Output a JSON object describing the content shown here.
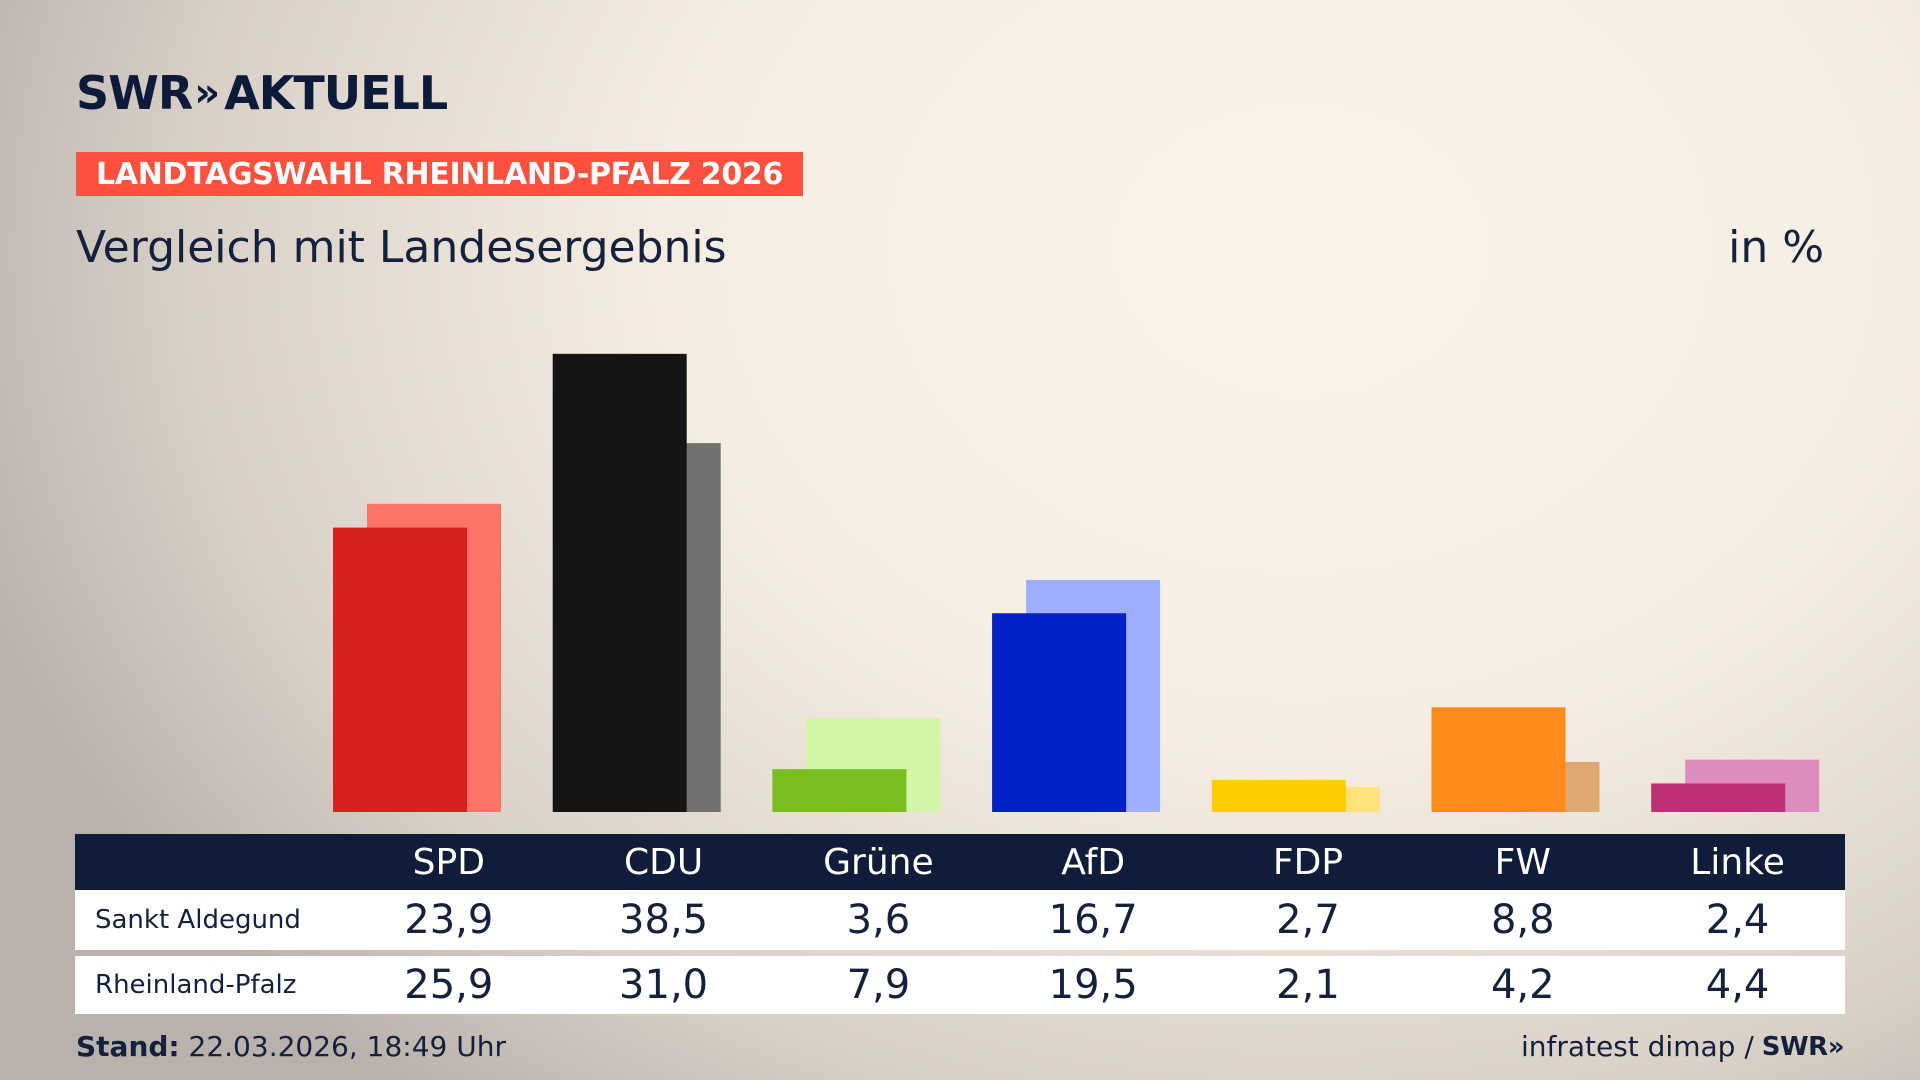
{
  "header": {
    "logo_text": "SWR",
    "logo_chevrons": "»",
    "logo_suffix": "AKTUELL",
    "badge": "LANDTAGSWAHL RHEINLAND-PFALZ 2026",
    "subtitle": "Vergleich mit Landesergebnis",
    "unit": "in %"
  },
  "colors": {
    "badge": "#ff4f3d",
    "navy": "#0f1d3b"
  },
  "chart_data": {
    "type": "bar",
    "categories": [
      "SPD",
      "CDU",
      "Grüne",
      "AfD",
      "FDP",
      "FW",
      "Linke"
    ],
    "series": [
      {
        "name": "Sankt Aldegund",
        "values": [
          23.9,
          38.5,
          3.6,
          16.7,
          2.7,
          8.8,
          2.4
        ],
        "colors": [
          "#d6211e",
          "#141414",
          "#78be20",
          "#0020c8",
          "#ffcc00",
          "#ff8c1a",
          "#be3075"
        ]
      },
      {
        "name": "Rheinland-Pfalz",
        "values": [
          25.9,
          31.0,
          7.9,
          19.5,
          2.1,
          4.2,
          4.4
        ],
        "colors": [
          "#ff7468",
          "#737070",
          "#d4f5a8",
          "#9eaefe",
          "#ffe37a",
          "#dea870",
          "#de8cbc"
        ]
      }
    ],
    "ylim": [
      0,
      40
    ]
  },
  "table": {
    "rows": [
      {
        "label": "Sankt Aldegund",
        "values": [
          "23,9",
          "38,5",
          "3,6",
          "16,7",
          "2,7",
          "8,8",
          "2,4"
        ]
      },
      {
        "label": "Rheinland-Pfalz",
        "values": [
          "25,9",
          "31,0",
          "7,9",
          "19,5",
          "2,1",
          "4,2",
          "4,4"
        ]
      }
    ]
  },
  "footer": {
    "stand_label": "Stand:",
    "stand_value": "22.03.2026, 18:49 Uhr",
    "source": "infratest dimap /",
    "source_logo": "SWR»"
  }
}
